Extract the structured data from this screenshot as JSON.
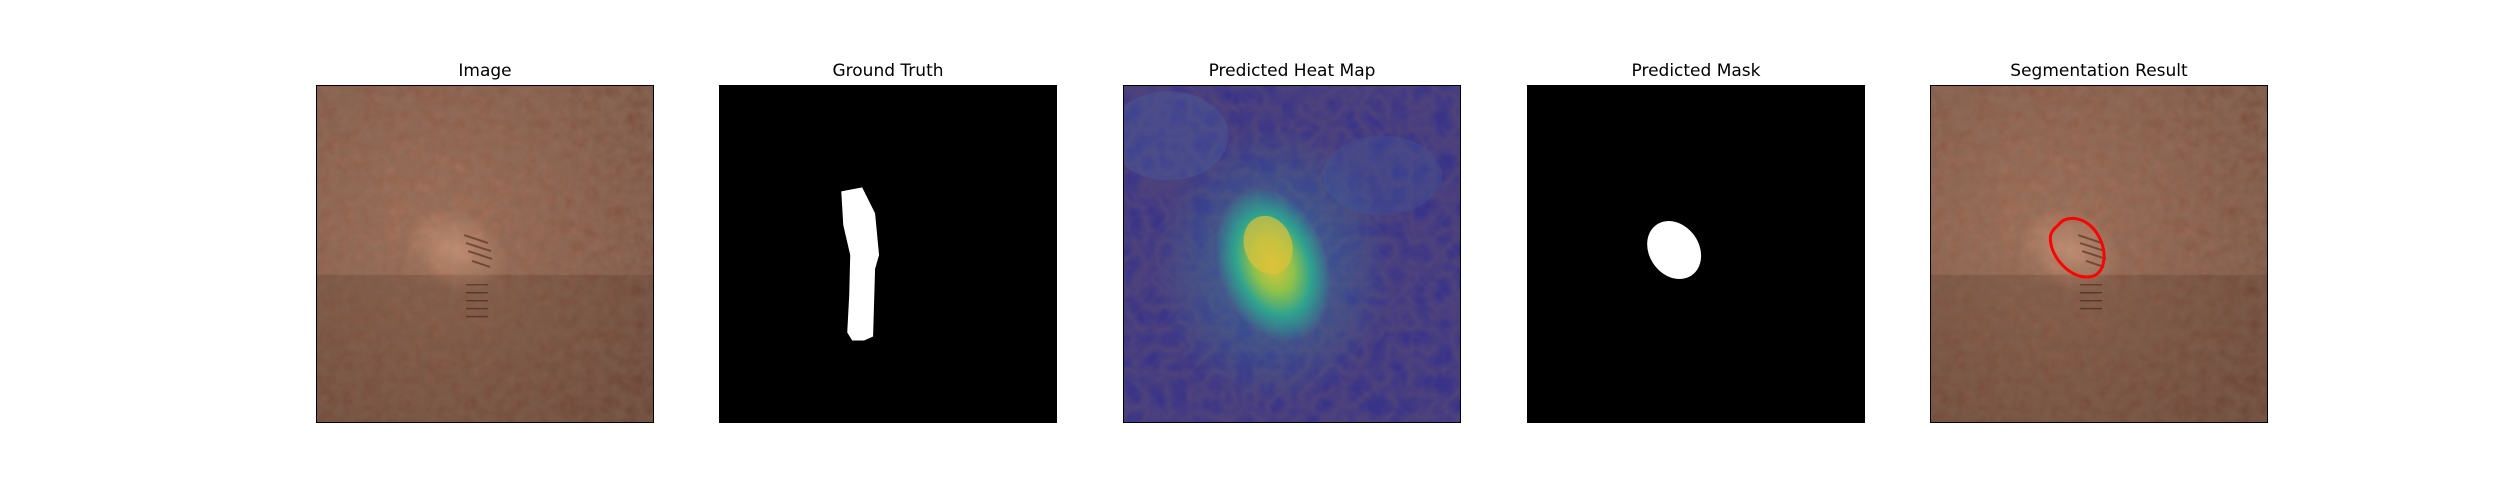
{
  "panels": [
    {
      "id": "image",
      "title": "Image"
    },
    {
      "id": "ground-truth",
      "title": "Ground Truth"
    },
    {
      "id": "heat-map",
      "title": "Predicted Heat Map"
    },
    {
      "id": "predicted-mask",
      "title": "Predicted Mask"
    },
    {
      "id": "segmentation",
      "title": "Segmentation Result"
    }
  ],
  "colors": {
    "leather_base": "#8a5a44",
    "leather_highlight": "#c08a6c",
    "mask_background": "#000000",
    "mask_foreground": "#ffffff",
    "heat_low": "#3d3a8c",
    "heat_mid": "#2fa38e",
    "heat_high": "#d9c23a",
    "contour": "#ff0000"
  }
}
